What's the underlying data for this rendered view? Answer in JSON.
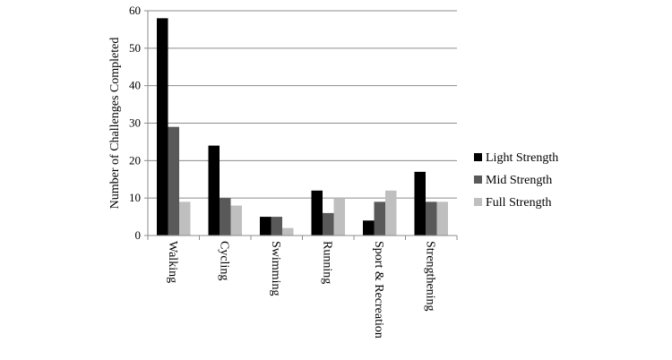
{
  "chart_data": {
    "type": "bar",
    "title": "",
    "xlabel": "",
    "ylabel": "Number of Challenges Completed",
    "ylim": [
      0,
      60
    ],
    "yticks": [
      0,
      10,
      20,
      30,
      40,
      50,
      60
    ],
    "grid": "horizontal",
    "legend_position": "right",
    "categories": [
      "Walking",
      "Cycling",
      "Swimming",
      "Running",
      "Sport & Recreation",
      "Strengthening"
    ],
    "series": [
      {
        "name": "Light Strength",
        "color": "#000000",
        "values": [
          58,
          24,
          5,
          12,
          4,
          17
        ]
      },
      {
        "name": "Mid Strength",
        "color": "#595959",
        "values": [
          29,
          10,
          5,
          6,
          9,
          9
        ]
      },
      {
        "name": "Full Strength",
        "color": "#bfbfbf",
        "values": [
          9,
          8,
          2,
          10,
          12,
          9
        ]
      }
    ]
  }
}
